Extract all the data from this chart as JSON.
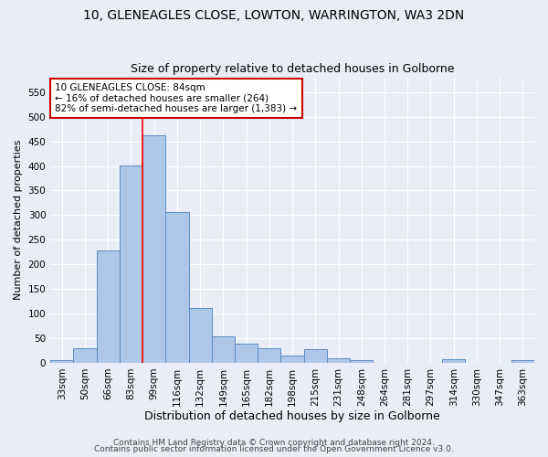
{
  "title1": "10, GLENEAGLES CLOSE, LOWTON, WARRINGTON, WA3 2DN",
  "title2": "Size of property relative to detached houses in Golborne",
  "xlabel": "Distribution of detached houses by size in Golborne",
  "ylabel": "Number of detached properties",
  "categories": [
    "33sqm",
    "50sqm",
    "66sqm",
    "83sqm",
    "99sqm",
    "116sqm",
    "132sqm",
    "149sqm",
    "165sqm",
    "182sqm",
    "198sqm",
    "215sqm",
    "231sqm",
    "248sqm",
    "264sqm",
    "281sqm",
    "297sqm",
    "314sqm",
    "330sqm",
    "347sqm",
    "363sqm"
  ],
  "values": [
    5,
    30,
    228,
    401,
    462,
    307,
    111,
    54,
    39,
    30,
    14,
    27,
    10,
    5,
    0,
    0,
    0,
    8,
    0,
    0,
    5
  ],
  "bar_color": "#aec6e8",
  "bar_edge_color": "#5b8ec4",
  "bar_width": 1.0,
  "redline_category_index": 3.5,
  "annotation_text": "10 GLENEAGLES CLOSE: 84sqm\n← 16% of detached houses are smaller (264)\n82% of semi-detached houses are larger (1,383) →",
  "annotation_box_color": "#ffffff",
  "annotation_box_edgecolor": "#cc0000",
  "ylim": [
    0,
    580
  ],
  "yticks": [
    0,
    50,
    100,
    150,
    200,
    250,
    300,
    350,
    400,
    450,
    500,
    550
  ],
  "footer1": "Contains HM Land Registry data © Crown copyright and database right 2024.",
  "footer2": "Contains public sector information licensed under the Open Government Licence v3.0.",
  "bg_color": "#e8edf8",
  "plot_bg_color": "#e8edf8",
  "grid_color": "#ffffff",
  "title1_fontsize": 10,
  "title2_fontsize": 9,
  "xlabel_fontsize": 9,
  "ylabel_fontsize": 8,
  "tick_fontsize": 7.5,
  "footer_fontsize": 6.5
}
